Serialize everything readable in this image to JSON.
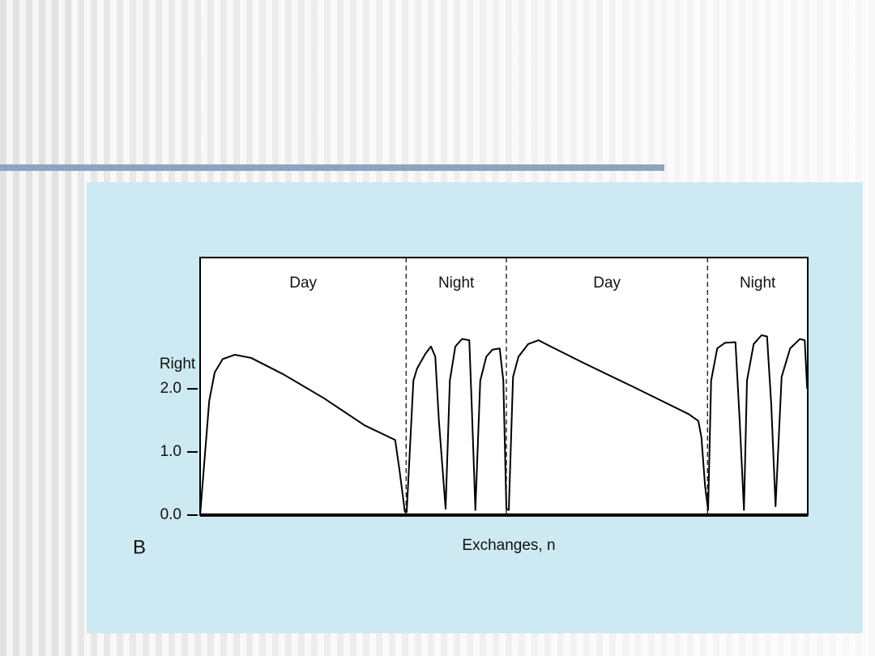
{
  "chart_data": {
    "type": "line",
    "panel_label": "B",
    "xlabel": "Exchanges, n",
    "ylabel": "Right",
    "xlim": [
      0,
      100
    ],
    "ylim": [
      0,
      4.08
    ],
    "yticks": [
      {
        "value": 0,
        "label": "0.0"
      },
      {
        "value": 1,
        "label": "1.0"
      },
      {
        "value": 2,
        "label": "2.0"
      }
    ],
    "regions": [
      "Day",
      "Night",
      "Day",
      "Night"
    ],
    "boundaries": [
      33.9,
      50.4,
      83.5
    ],
    "color": "#000000",
    "x": [
      0,
      1.5,
      2.4,
      3.7,
      5.7,
      8.4,
      13.7,
      20.4,
      27.1,
      32.1,
      32.8,
      33.7,
      34.0,
      35.1,
      35.7,
      37.1,
      38.0,
      38.7,
      39.3,
      40.4,
      41.1,
      42.0,
      43.1,
      44.3,
      44.7,
      45.3,
      46.1,
      47.1,
      48.1,
      49.3,
      49.9,
      50.4,
      50.8,
      51.5,
      52.4,
      54.0,
      55.7,
      57.7,
      63.1,
      71.1,
      80.4,
      82.0,
      82.5,
      83.1,
      83.6,
      84.1,
      85.1,
      86.4,
      88.1,
      88.8,
      89.5,
      90.0,
      91.1,
      92.4,
      93.3,
      94.0,
      94.7,
      95.7,
      97.1,
      98.7,
      99.5,
      99.9
    ],
    "values": [
      0,
      1.81,
      2.26,
      2.47,
      2.54,
      2.49,
      2.23,
      1.85,
      1.42,
      1.19,
      0.72,
      0.05,
      0.05,
      2.13,
      2.32,
      2.56,
      2.67,
      2.51,
      1.49,
      0.1,
      2.13,
      2.67,
      2.79,
      2.77,
      1.74,
      0.08,
      2.13,
      2.51,
      2.62,
      2.64,
      2.13,
      0.1,
      0.08,
      2.19,
      2.51,
      2.71,
      2.77,
      2.67,
      2.41,
      2.04,
      1.6,
      1.49,
      1.23,
      0.46,
      0.08,
      2.13,
      2.64,
      2.73,
      2.74,
      1.49,
      0.08,
      2.13,
      2.71,
      2.85,
      2.83,
      1.74,
      0.14,
      2.19,
      2.64,
      2.79,
      2.77,
      2.0
    ]
  }
}
